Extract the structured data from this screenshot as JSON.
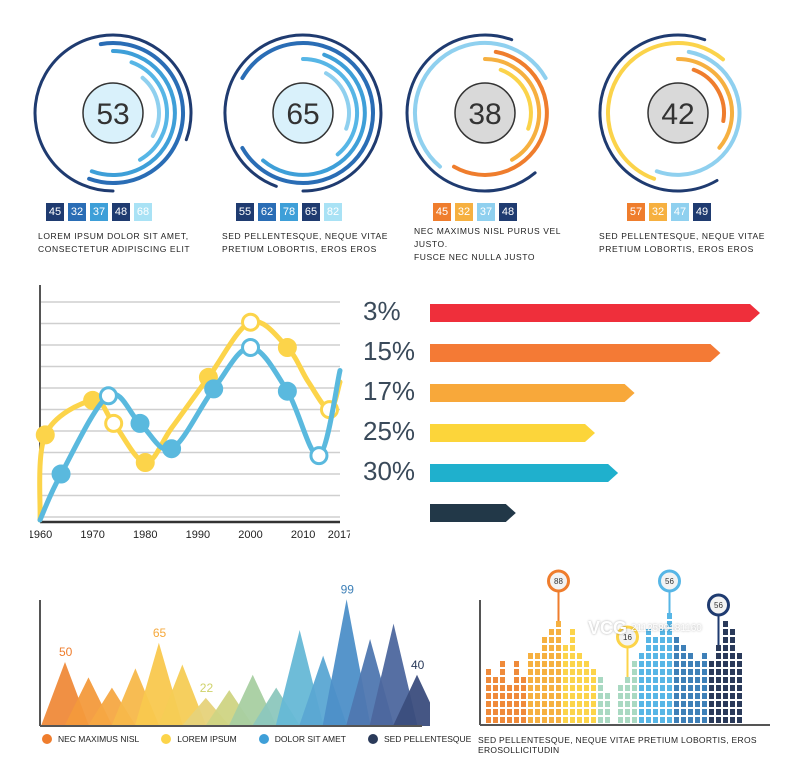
{
  "gauges": [
    {
      "value": "53",
      "center_fill": "#d9f1fb",
      "arc_colors": [
        "#1f3b70",
        "#2a6db5",
        "#3e9fd8",
        "#57b6e6",
        "#8fd0ef"
      ],
      "badges": [
        {
          "text": "45",
          "color": "#1f3b70"
        },
        {
          "text": "32",
          "color": "#2a6db5"
        },
        {
          "text": "37",
          "color": "#3e9fd8"
        },
        {
          "text": "48",
          "color": "#1f3b70"
        },
        {
          "text": "68",
          "color": "#a9e2f5"
        }
      ],
      "caption_lines": [
        "LOREM  IPSUM  DOLOR  SIT  AMET,",
        "CONSECTETUR ADIPISCING ELIT"
      ]
    },
    {
      "value": "65",
      "center_fill": "#d9f1fb",
      "arc_colors": [
        "#1f3b70",
        "#2a6db5",
        "#3e9fd8",
        "#57b6e6",
        "#8fd0ef"
      ],
      "badges": [
        {
          "text": "55",
          "color": "#1f3b70"
        },
        {
          "text": "62",
          "color": "#2a6db5"
        },
        {
          "text": "78",
          "color": "#3e9fd8"
        },
        {
          "text": "65",
          "color": "#1f3b70"
        },
        {
          "text": "82",
          "color": "#a9e2f5"
        }
      ],
      "caption_lines": [
        "SED  PELLENTESQUE,  NEQUE  VITAE",
        "PRETIUM LOBORTIS, EROS EROS"
      ]
    },
    {
      "value": "38",
      "center_fill": "#d9d9d9",
      "arc_colors": [
        "#1f3b70",
        "#8fd0ef",
        "#ef7d2d",
        "#f6b040",
        "#fbd34a"
      ],
      "badges": [
        {
          "text": "45",
          "color": "#ef7d2d"
        },
        {
          "text": "32",
          "color": "#f6b040"
        },
        {
          "text": "37",
          "color": "#8fd0ef"
        },
        {
          "text": "48",
          "color": "#1f3b70"
        }
      ],
      "caption_lines": [
        "NEC MAXIMUS NISL PURUS VEL JUSTO.",
        "FUSCE NEC NULLA JUSTO"
      ]
    },
    {
      "value": "42",
      "center_fill": "#d9d9d9",
      "arc_colors": [
        "#1f3b70",
        "#fbd34a",
        "#8fd0ef",
        "#f6b040",
        "#ef7d2d"
      ],
      "badges": [
        {
          "text": "57",
          "color": "#ef7d2d"
        },
        {
          "text": "32",
          "color": "#f6b040"
        },
        {
          "text": "47",
          "color": "#8fd0ef"
        },
        {
          "text": "49",
          "color": "#1f3b70"
        }
      ],
      "caption_lines": [
        "SED  PELLENTESQUE,  NEQUE  VITAE",
        "PRETIUM LOBORTIS, EROS EROS"
      ]
    }
  ],
  "chart_data": [
    {
      "type": "line",
      "x_tick_labels": [
        "1960",
        "1970",
        "1980",
        "1990",
        "2000",
        "2010",
        "2017"
      ],
      "xlim": [
        1960,
        2017
      ],
      "ylim": [
        0,
        100
      ],
      "grid": true,
      "series": [
        {
          "name": "yellow",
          "color": "#fcd44a",
          "x": [
            1960,
            1961,
            1970,
            1974,
            1980,
            1985,
            1992,
            2000,
            2007,
            2011,
            2015,
            2017
          ],
          "y": [
            0,
            37,
            52,
            42,
            25,
            40,
            62,
            86,
            75,
            60,
            48,
            60
          ],
          "markers": [
            [
              1961,
              37
            ],
            [
              1970,
              52
            ],
            [
              1974,
              42
            ],
            [
              1980,
              25
            ],
            [
              1992,
              62
            ],
            [
              2000,
              86
            ],
            [
              2007,
              75
            ],
            [
              2015,
              48
            ]
          ]
        },
        {
          "name": "blue",
          "color": "#5ab9de",
          "x": [
            1960,
            1964,
            1973,
            1979,
            1985,
            1993,
            2000,
            2007,
            2013,
            2017
          ],
          "y": [
            0,
            20,
            54,
            42,
            31,
            57,
            75,
            56,
            28,
            65
          ],
          "markers": [
            [
              1964,
              20
            ],
            [
              1973,
              54
            ],
            [
              1979,
              42
            ],
            [
              1985,
              31
            ],
            [
              1993,
              57
            ],
            [
              2000,
              75
            ],
            [
              2007,
              56
            ],
            [
              2013,
              28
            ]
          ]
        }
      ]
    },
    {
      "type": "bar",
      "orientation": "horizontal",
      "categories": [
        "3%",
        "15%",
        "17%",
        "25%",
        "30%"
      ],
      "values": [
        100,
        88,
        62,
        50,
        57
      ],
      "colors": [
        "#ef2f3b",
        "#f47a35",
        "#f8a83a",
        "#fcd53a",
        "#1fb0cd",
        "#223848"
      ],
      "labels": [
        "3%",
        "15%",
        "17%",
        "25%",
        "30%"
      ]
    },
    {
      "type": "bar",
      "subtype": "triangle",
      "values": [
        50,
        38,
        30,
        45,
        65,
        48,
        22,
        28,
        40,
        30,
        75,
        55,
        99,
        68,
        80,
        40
      ],
      "colors": [
        "#ef8a3a",
        "#f39a3c",
        "#f5a843",
        "#f7b84a",
        "#f9c84e",
        "#f5cc55",
        "#e6d27a",
        "#cfd483",
        "#a8cfa1",
        "#8cc7bd",
        "#66b8d6",
        "#5aa6d3",
        "#4d8fc8",
        "#4f77b0",
        "#4d679e",
        "#3b4d7d"
      ],
      "value_labels": [
        {
          "text": "50",
          "color": "#ef7d2d",
          "index": 0
        },
        {
          "text": "65",
          "color": "#f6a93c",
          "index": 4
        },
        {
          "text": "22",
          "color": "#cfd26a",
          "index": 6
        },
        {
          "text": "99",
          "color": "#3e80b8",
          "index": 12
        },
        {
          "text": "40",
          "color": "#2a3a5a",
          "index": 15
        }
      ],
      "legend": [
        {
          "label": "NEC MAXIMUS NISL",
          "color": "#ef7d2d"
        },
        {
          "label": "LOREM IPSUM",
          "color": "#fcd44a"
        },
        {
          "label": "DOLOR SIT AMET",
          "color": "#3e9fd8"
        },
        {
          "label": "SED PELLENTESQUE",
          "color": "#2a3a5a"
        }
      ]
    },
    {
      "type": "bar",
      "subtype": "segmented-columns",
      "heights": [
        7,
        6,
        8,
        5,
        8,
        6,
        9,
        9,
        11,
        12,
        13,
        10,
        12,
        9,
        8,
        7,
        6,
        4,
        5,
        6,
        8,
        9,
        12,
        11,
        12,
        14,
        11,
        10,
        9,
        8,
        9,
        8,
        10,
        13,
        12,
        9
      ],
      "colors_left_to_right": [
        "#ef8a3a",
        "#f6b040",
        "#fcd44a",
        "#a9d9c2",
        "#57b6e6",
        "#3e80b8",
        "#2a3a5a"
      ],
      "pins": [
        {
          "text": "88",
          "ring_color": "#ef7d2d",
          "index": 10
        },
        {
          "text": "16",
          "ring_color": "#fcd44a",
          "index": 19
        },
        {
          "text": "56",
          "ring_color": "#57b6e6",
          "index": 25
        },
        {
          "text": "56",
          "ring_color": "#1f3b70",
          "index": 32
        }
      ],
      "caption": "SED PELLENTESQUE, NEQUE VITAE PRETIUM LOBORTIS, EROS EROSOLLICITUDIN"
    }
  ],
  "watermark": {
    "logo": "VCG",
    "id": "2112589181160"
  }
}
